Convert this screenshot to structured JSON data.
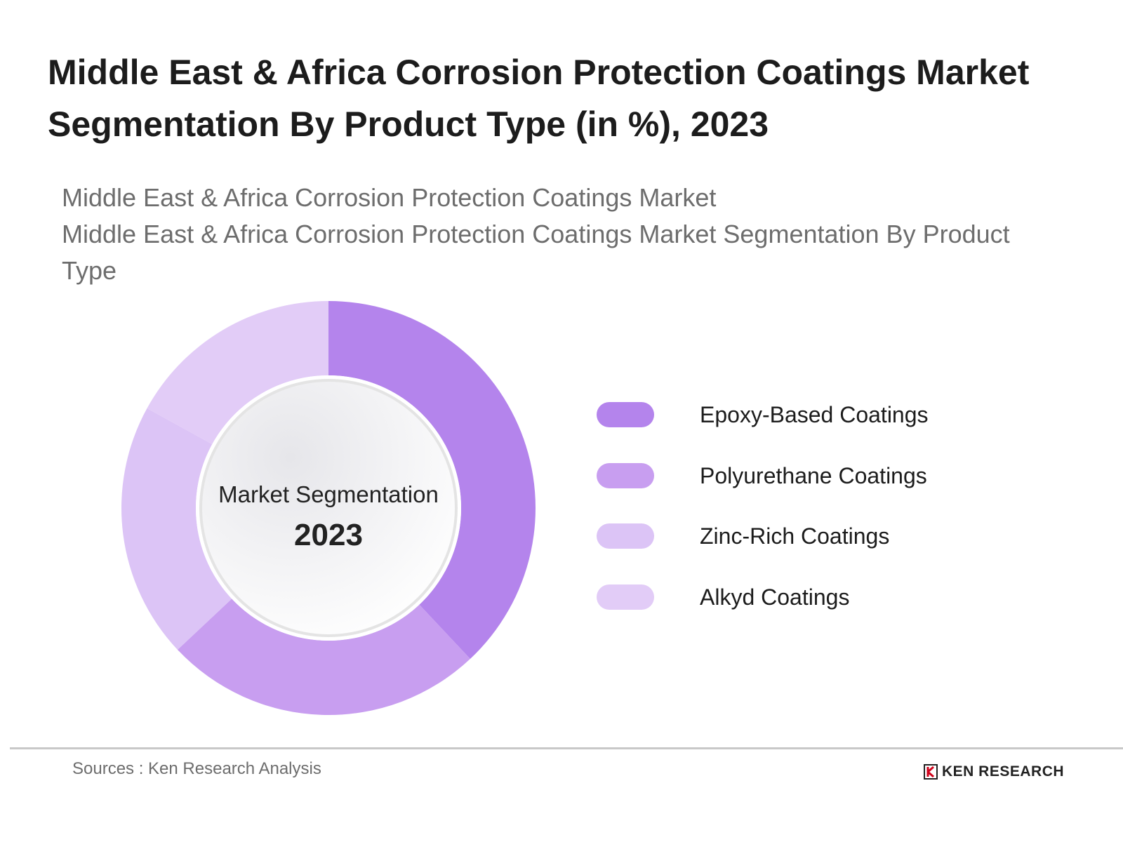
{
  "title": "Middle East & Africa Corrosion Protection Coatings Market Segmentation By Product Type (in %), 2023",
  "subtitle_lines": [
    "Middle East & Africa Corrosion Protection Coatings Market",
    "Middle East & Africa Corrosion Protection Coatings Market Segmentation By Product Type"
  ],
  "center": {
    "label": "Market Segmentation",
    "year": "2023"
  },
  "chart_data": {
    "type": "pie",
    "variant": "donut",
    "categories": [
      "Epoxy-Based Coatings",
      "Polyurethane Coatings",
      "Zinc-Rich Coatings",
      "Alkyd Coatings"
    ],
    "values": [
      38,
      25,
      20,
      17
    ],
    "colors": [
      "#b484ec",
      "#c89ef0",
      "#dcc4f6",
      "#e2ccf7"
    ],
    "legend_position": "right"
  },
  "footer": {
    "source": "Sources : Ken Research Analysis",
    "logo_text": "KEN RESEARCH"
  }
}
